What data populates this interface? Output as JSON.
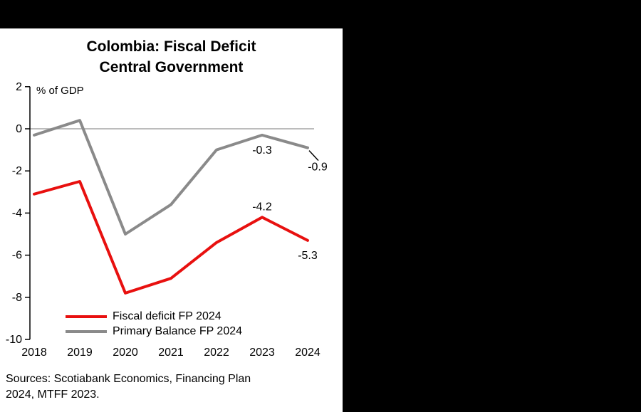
{
  "chart_data": {
    "type": "line",
    "title": "Colombia: Fiscal Deficit Central Government",
    "title_line1": "Colombia: Fiscal Deficit",
    "title_line2": "Central Government",
    "ylabel": "% of GDP",
    "x": [
      "2018",
      "2019",
      "2020",
      "2021",
      "2022",
      "2023",
      "2024"
    ],
    "yticks": [
      2,
      0,
      -2,
      -4,
      -6,
      -8,
      -10
    ],
    "ylim": [
      -10,
      2
    ],
    "grid": "zero-line-only",
    "legend_position": "inside-bottom-left",
    "series": [
      {
        "name": "Fiscal deficit FP 2024",
        "color": "#e8100f",
        "values": [
          -3.1,
          -2.5,
          -7.8,
          -7.1,
          -5.4,
          -4.2,
          -5.3
        ]
      },
      {
        "name": "Primary Balance FP 2024",
        "color": "#8a8a8a",
        "values": [
          -0.3,
          0.4,
          -5.0,
          -3.6,
          -1.0,
          -0.3,
          -0.9
        ]
      }
    ],
    "annotations": [
      {
        "series": "Fiscal deficit FP 2024",
        "year": "2023",
        "text": "-4.2",
        "placement": "above"
      },
      {
        "series": "Fiscal deficit FP 2024",
        "year": "2024",
        "text": "-5.3",
        "placement": "below"
      },
      {
        "series": "Primary Balance FP 2024",
        "year": "2023",
        "text": "-0.3",
        "placement": "below"
      },
      {
        "series": "Primary Balance FP 2024",
        "year": "2024",
        "text": "-0.9",
        "placement": "leader-below-right"
      }
    ],
    "colors": {
      "axis": "#000000",
      "zero_line": "#a6a6a6",
      "leader": "#000000",
      "panel_background": "#ffffff",
      "page_background": "#000000"
    }
  },
  "sources": {
    "line1": "Sources: Scotiabank Economics, Financing Plan",
    "line2": "2024, MTFF 2023."
  }
}
